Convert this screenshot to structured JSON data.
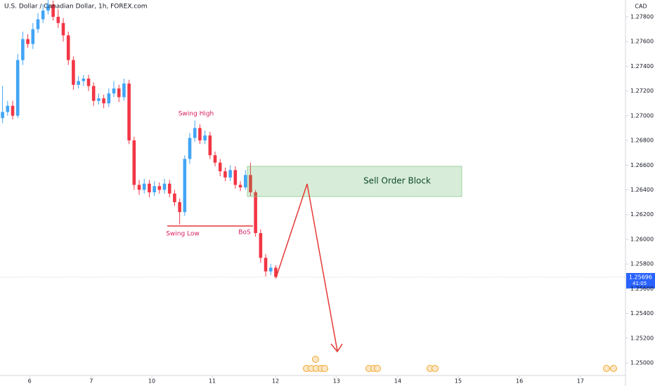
{
  "chart_data": {
    "type": "candlestick",
    "title": "U.S. Dollar / Canadian Dollar, 1h, FOREX.com",
    "currency": "CAD",
    "last_price_label": "1.25696",
    "countdown": "41:05",
    "up_color": "#42a5f5",
    "down_color": "#f23645",
    "x": [
      1,
      3,
      5,
      7,
      9,
      11,
      13,
      15,
      17,
      19,
      21,
      23,
      25,
      27,
      29,
      31,
      33,
      35,
      37,
      39,
      41,
      43,
      45,
      47,
      49,
      51,
      53,
      55,
      57,
      59,
      61,
      63,
      65,
      67,
      69,
      71,
      73,
      75,
      77,
      79,
      81,
      83,
      85,
      87,
      89,
      91,
      93,
      95,
      97,
      99,
      101,
      103,
      105,
      107,
      109
    ],
    "open": [
      1.2698,
      1.2703,
      1.2708,
      1.27,
      1.2745,
      1.2762,
      1.2758,
      1.277,
      1.2778,
      1.2785,
      1.279,
      1.278,
      1.2775,
      1.2765,
      1.2745,
      1.2725,
      1.2728,
      1.273,
      1.2724,
      1.2712,
      1.2714,
      1.271,
      1.2718,
      1.2722,
      1.2715,
      1.2726,
      1.268,
      1.2644,
      1.264,
      1.2645,
      1.2638,
      1.2643,
      1.264,
      1.2645,
      1.2637,
      1.263,
      1.2622,
      1.2665,
      1.2682,
      1.269,
      1.268,
      1.2684,
      1.2668,
      1.2662,
      1.2655,
      1.265,
      1.2656,
      1.2644,
      1.2642,
      1.2652,
      1.2638,
      1.2605,
      1.2585,
      1.2574,
      1.2577
    ],
    "high": [
      1.2724,
      1.2712,
      1.2712,
      1.275,
      1.2768,
      1.2766,
      1.2775,
      1.2783,
      1.279,
      1.2796,
      1.2793,
      1.2786,
      1.2779,
      1.2768,
      1.2748,
      1.2732,
      1.2733,
      1.2733,
      1.2727,
      1.2718,
      1.2717,
      1.2722,
      1.2728,
      1.2725,
      1.273,
      1.2729,
      1.2683,
      1.2648,
      1.2649,
      1.2648,
      1.2647,
      1.2646,
      1.2649,
      1.2648,
      1.264,
      1.2633,
      1.2668,
      1.2686,
      1.2696,
      1.2693,
      1.2688,
      1.2687,
      1.2671,
      1.2665,
      1.2658,
      1.266,
      1.2659,
      1.2647,
      1.2656,
      1.2662,
      1.264,
      1.2608,
      1.2588,
      1.258,
      1.2579
    ],
    "low": [
      1.2694,
      1.27,
      1.2697,
      1.2698,
      1.2741,
      1.2755,
      1.2754,
      1.2767,
      1.2775,
      1.2782,
      1.2777,
      1.2771,
      1.276,
      1.2741,
      1.2721,
      1.2722,
      1.2724,
      1.272,
      1.2708,
      1.2709,
      1.2706,
      1.2707,
      1.2715,
      1.2711,
      1.2712,
      1.2677,
      1.264,
      1.2636,
      1.2637,
      1.2634,
      1.2635,
      1.2637,
      1.2637,
      1.2634,
      1.2627,
      1.2612,
      1.2619,
      1.2661,
      1.2679,
      1.2677,
      1.2677,
      1.2665,
      1.2659,
      1.2651,
      1.2647,
      1.2647,
      1.2641,
      1.2639,
      1.264,
      1.2635,
      1.2602,
      1.2581,
      1.257,
      1.2571,
      1.2568
    ],
    "close": [
      1.2703,
      1.2708,
      1.27,
      1.2745,
      1.2762,
      1.2758,
      1.277,
      1.2778,
      1.2785,
      1.279,
      1.278,
      1.2775,
      1.2765,
      1.2745,
      1.2725,
      1.2728,
      1.273,
      1.2724,
      1.2712,
      1.2714,
      1.271,
      1.2718,
      1.2722,
      1.2715,
      1.2726,
      1.268,
      1.2644,
      1.264,
      1.2645,
      1.2638,
      1.2643,
      1.264,
      1.2645,
      1.2637,
      1.263,
      1.2622,
      1.2665,
      1.2682,
      1.269,
      1.268,
      1.2684,
      1.2668,
      1.2662,
      1.2655,
      1.265,
      1.2656,
      1.2644,
      1.2642,
      1.2652,
      1.2638,
      1.2605,
      1.2585,
      1.2574,
      1.2577,
      1.25696
    ],
    "xlim": [
      0,
      247.2
    ],
    "xticks": [
      {
        "value": 11.7,
        "label": "6"
      },
      {
        "value": 36.1,
        "label": "7"
      },
      {
        "value": 60,
        "label": "10"
      },
      {
        "value": 83.9,
        "label": "11"
      },
      {
        "value": 108.9,
        "label": "12"
      },
      {
        "value": 133,
        "label": "13"
      },
      {
        "value": 157.2,
        "label": "14"
      },
      {
        "value": 181.1,
        "label": "15"
      },
      {
        "value": 205.3,
        "label": "16"
      },
      {
        "value": 229.4,
        "label": "17"
      }
    ],
    "ylim": [
      1.24898,
      1.27936
    ],
    "yticks": [
      {
        "value": 1.278,
        "label": "1.27800"
      },
      {
        "value": 1.276,
        "label": "1.27600"
      },
      {
        "value": 1.274,
        "label": "1.27400"
      },
      {
        "value": 1.272,
        "label": "1.27200"
      },
      {
        "value": 1.27,
        "label": "1.27000"
      },
      {
        "value": 1.268,
        "label": "1.26800"
      },
      {
        "value": 1.266,
        "label": "1.26600"
      },
      {
        "value": 1.264,
        "label": "1.26400"
      },
      {
        "value": 1.262,
        "label": "1.26200"
      },
      {
        "value": 1.26,
        "label": "1.26000"
      },
      {
        "value": 1.258,
        "label": "1.25800"
      },
      {
        "value": 1.256,
        "label": "1.25600"
      },
      {
        "value": 1.254,
        "label": "1.25400"
      },
      {
        "value": 1.252,
        "label": "1.25200"
      },
      {
        "value": 1.25,
        "label": "1.25000"
      }
    ],
    "annotations": {
      "swing_high": "Swing High",
      "swing_low": "Swing Low",
      "bos": "BoS",
      "order_block": "Sell Order Block"
    }
  }
}
